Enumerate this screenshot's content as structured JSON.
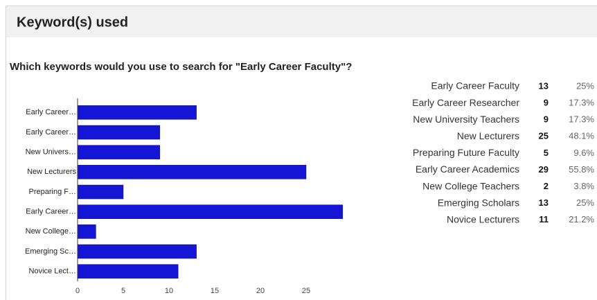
{
  "header": {
    "title": "Keyword(s) used"
  },
  "question": "Which keywords would you use to search for \"Early Career Faculty\"?",
  "chart_data": {
    "type": "bar",
    "orientation": "horizontal",
    "categories": [
      "Early Career…",
      "Early Career…",
      "New Univers…",
      "New Lecturers",
      "Preparing F…",
      "Early Career…",
      "New College…",
      "Emerging Sc…",
      "Novice Lect…"
    ],
    "values": [
      13,
      9,
      9,
      25,
      5,
      29,
      2,
      13,
      11
    ],
    "color": "#1515d6",
    "xlim": [
      0,
      30
    ],
    "xticks": [
      0,
      5,
      10,
      15,
      20,
      25
    ],
    "grid": false
  },
  "table": {
    "rows": [
      [
        "Early Career Faculty",
        13,
        "25%"
      ],
      [
        "Early Career Researcher",
        9,
        "17.3%"
      ],
      [
        "New University Teachers",
        9,
        "17.3%"
      ],
      [
        "New Lecturers",
        25,
        "48.1%"
      ],
      [
        "Preparing Future Faculty",
        5,
        "9.6%"
      ],
      [
        "Early Career Academics",
        29,
        "55.8%"
      ],
      [
        "New College Teachers",
        2,
        "3.8%"
      ],
      [
        "Emerging Scholars",
        13,
        "25%"
      ],
      [
        "Novice Lecturers",
        11,
        "21.2%"
      ]
    ]
  }
}
